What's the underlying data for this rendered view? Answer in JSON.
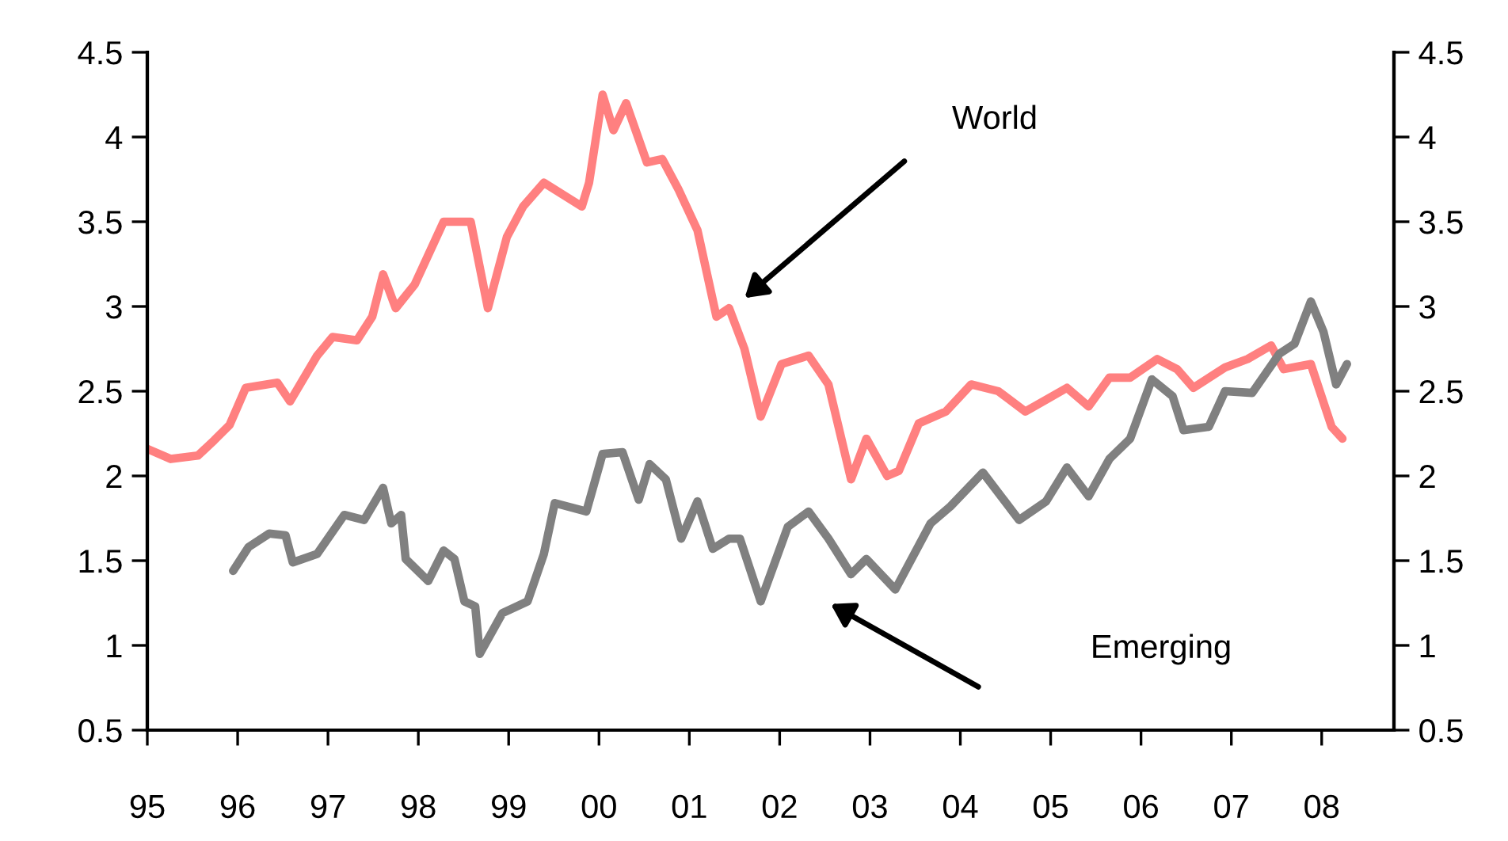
{
  "chart_data": {
    "type": "line",
    "xlim": [
      1995,
      2008.8
    ],
    "xticks": [
      {
        "value": 1995,
        "label": "95"
      },
      {
        "value": 1996,
        "label": "96"
      },
      {
        "value": 1997,
        "label": "97"
      },
      {
        "value": 1998,
        "label": "98"
      },
      {
        "value": 1999,
        "label": "99"
      },
      {
        "value": 2000,
        "label": "00"
      },
      {
        "value": 2001,
        "label": "01"
      },
      {
        "value": 2002,
        "label": "02"
      },
      {
        "value": 2003,
        "label": "03"
      },
      {
        "value": 2004,
        "label": "04"
      },
      {
        "value": 2005,
        "label": "05"
      },
      {
        "value": 2006,
        "label": "06"
      },
      {
        "value": 2007,
        "label": "07"
      },
      {
        "value": 2008,
        "label": "08"
      }
    ],
    "ylim": [
      0.5,
      4.5
    ],
    "yticks": [
      0.5,
      1,
      1.5,
      2,
      2.5,
      3,
      3.5,
      4,
      4.5
    ],
    "y2lim": [
      0.5,
      4.5
    ],
    "y2ticks": [
      0.5,
      1,
      1.5,
      2,
      2.5,
      3,
      3.5,
      4,
      4.5
    ],
    "grid": false,
    "line_style": "solid",
    "marker": "none",
    "series": [
      {
        "color": "#ff8080",
        "x": [
          1995.0,
          1995.26,
          1995.56,
          1995.74,
          1995.91,
          1996.09,
          1996.44,
          1996.58,
          1996.88,
          1997.05,
          1997.32,
          1997.49,
          1997.61,
          1997.75,
          1997.96,
          1998.28,
          1998.58,
          1998.77,
          1998.98,
          1999.16,
          1999.39,
          1999.81,
          1999.89,
          2000.04,
          2000.16,
          2000.3,
          2000.53,
          2000.7,
          2000.88,
          2001.09,
          2001.3,
          2001.44,
          2001.61,
          2001.79,
          2002.02,
          2002.32,
          2002.54,
          2002.79,
          2002.96,
          2003.19,
          2003.32,
          2003.54,
          2003.84,
          2004.12,
          2004.42,
          2004.72,
          2005.18,
          2005.42,
          2005.65,
          2005.88,
          2006.18,
          2006.4,
          2006.58,
          2006.93,
          2007.18,
          2007.44,
          2007.58,
          2007.88,
          2008.11,
          2008.23
        ],
        "values": [
          2.16,
          2.1,
          2.12,
          2.21,
          2.3,
          2.52,
          2.55,
          2.44,
          2.71,
          2.82,
          2.8,
          2.94,
          3.19,
          2.99,
          3.13,
          3.5,
          3.5,
          2.99,
          3.41,
          3.59,
          3.73,
          3.59,
          3.73,
          4.25,
          4.04,
          4.2,
          3.85,
          3.87,
          3.69,
          3.45,
          2.94,
          2.99,
          2.75,
          2.35,
          2.66,
          2.71,
          2.54,
          1.98,
          2.22,
          2.0,
          2.03,
          2.31,
          2.38,
          2.54,
          2.5,
          2.38,
          2.52,
          2.41,
          2.58,
          2.58,
          2.69,
          2.63,
          2.52,
          2.64,
          2.69,
          2.77,
          2.63,
          2.66,
          2.29,
          2.22
        ]
      },
      {
        "color": "#808080",
        "x": [
          1995.95,
          1996.12,
          1996.35,
          1996.53,
          1996.61,
          1996.88,
          1997.18,
          1997.4,
          1997.61,
          1997.7,
          1997.81,
          1997.86,
          1998.11,
          1998.28,
          1998.4,
          1998.51,
          1998.63,
          1998.68,
          1998.93,
          1999.21,
          1999.39,
          1999.51,
          1999.86,
          2000.04,
          2000.26,
          2000.44,
          2000.56,
          2000.74,
          2000.91,
          2001.09,
          2001.26,
          2001.44,
          2001.56,
          2001.79,
          2002.09,
          2002.32,
          2002.54,
          2002.79,
          2002.96,
          2003.28,
          2003.67,
          2003.89,
          2004.25,
          2004.65,
          2004.95,
          2005.18,
          2005.42,
          2005.65,
          2005.88,
          2006.12,
          2006.35,
          2006.47,
          2006.75,
          2006.93,
          2007.23,
          2007.53,
          2007.7,
          2007.88,
          2008.02,
          2008.16,
          2008.28
        ],
        "values": [
          1.44,
          1.58,
          1.66,
          1.65,
          1.49,
          1.54,
          1.77,
          1.74,
          1.93,
          1.72,
          1.77,
          1.51,
          1.38,
          1.56,
          1.51,
          1.26,
          1.23,
          0.95,
          1.19,
          1.26,
          1.54,
          1.84,
          1.79,
          2.13,
          2.14,
          1.86,
          2.07,
          1.98,
          1.63,
          1.85,
          1.57,
          1.63,
          1.63,
          1.26,
          1.7,
          1.79,
          1.63,
          1.42,
          1.51,
          1.33,
          1.72,
          1.82,
          2.02,
          1.74,
          1.85,
          2.05,
          1.88,
          2.1,
          2.22,
          2.57,
          2.47,
          2.27,
          2.29,
          2.5,
          2.49,
          2.72,
          2.78,
          3.03,
          2.85,
          2.54,
          2.66
        ]
      }
    ],
    "annotations": [
      "World",
      "Emerging"
    ]
  }
}
